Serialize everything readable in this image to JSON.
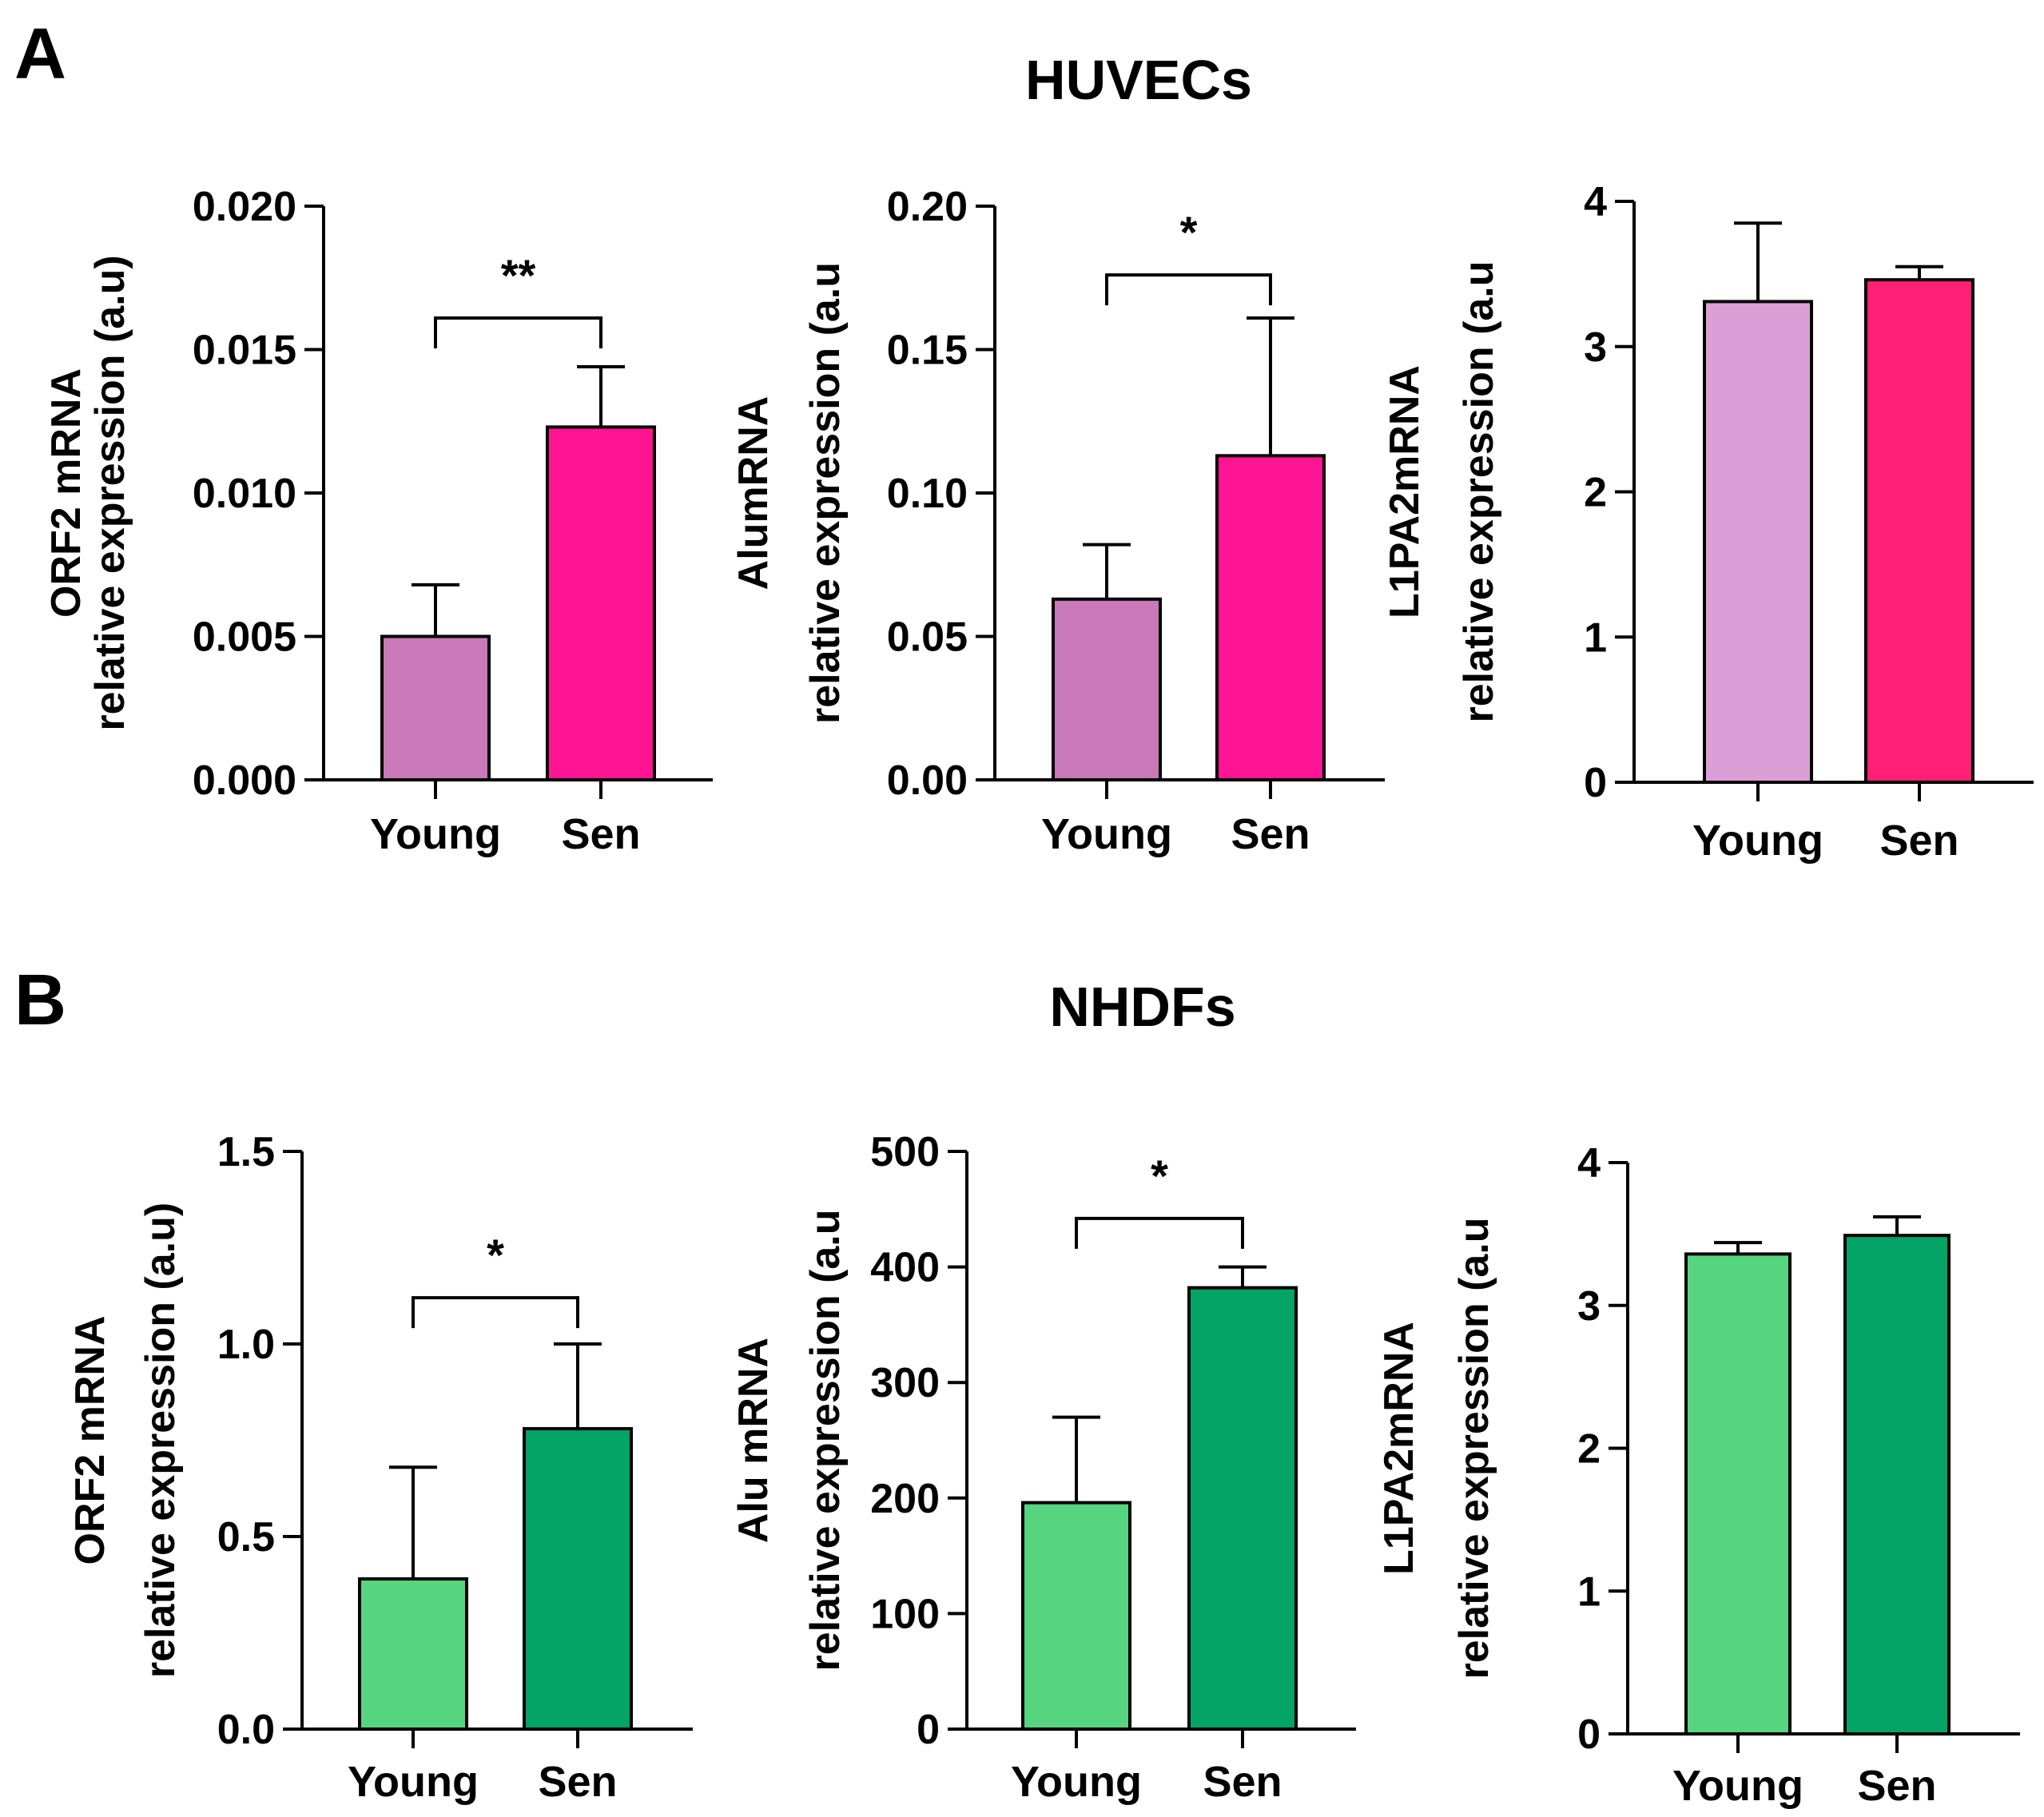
{
  "panels": [
    {
      "letter": "A",
      "title": "HUVECs"
    },
    {
      "letter": "B",
      "title": "NHDFs"
    }
  ],
  "colors": {
    "huvec_young": "#c978b8",
    "huvec_sen": "#ff1493",
    "huvec_young_light": "#dc9ed6",
    "huvec_sen_l1": "#ff1f76",
    "nhdf_young": "#56d47f",
    "nhdf_sen": "#03a465"
  },
  "chart_data": [
    {
      "type": "bar",
      "panel": "A",
      "categories": [
        "Young",
        "Sen"
      ],
      "values": [
        0.005,
        0.0123
      ],
      "errors": [
        0.0018,
        0.0021
      ],
      "ylabel": [
        "ORF2 mRNA",
        "relative expression (a.u)"
      ],
      "ylim": [
        0,
        0.02
      ],
      "ticks": [
        0,
        0.005,
        0.01,
        0.015,
        0.02
      ],
      "tick_labels": [
        "0.000",
        "0.005",
        "0.010",
        "0.015",
        "0.020"
      ],
      "significance": {
        "label": "**",
        "bracket_y": 0.0161
      },
      "colors": [
        "#c978b8",
        "#ff1493"
      ]
    },
    {
      "type": "bar",
      "panel": "A",
      "categories": [
        "Young",
        "Sen"
      ],
      "values": [
        0.063,
        0.113
      ],
      "errors": [
        0.019,
        0.048
      ],
      "ylabel": [
        "AlumRNA",
        "relative expression (a.u"
      ],
      "ylim": [
        0,
        0.2
      ],
      "ticks": [
        0,
        0.05,
        0.1,
        0.15,
        0.2
      ],
      "tick_labels": [
        "0.00",
        "0.05",
        "0.10",
        "0.15",
        "0.20"
      ],
      "significance": {
        "label": "*",
        "bracket_y": 0.176
      },
      "colors": [
        "#c978b8",
        "#ff1493"
      ]
    },
    {
      "type": "bar",
      "panel": "A",
      "categories": [
        "Young",
        "Sen"
      ],
      "values": [
        3.31,
        3.46
      ],
      "errors": [
        0.54,
        0.09
      ],
      "ylabel": [
        "L1PA2mRNA",
        "relative expression (a.u"
      ],
      "ylim": [
        0,
        4
      ],
      "ticks": [
        0,
        1,
        2,
        3,
        4
      ],
      "tick_labels": [
        "0",
        "1",
        "2",
        "3",
        "4"
      ],
      "significance": null,
      "colors": [
        "#dc9ed6",
        "#ff1f76"
      ]
    },
    {
      "type": "bar",
      "panel": "B",
      "categories": [
        "Young",
        "Sen"
      ],
      "values": [
        0.39,
        0.78
      ],
      "errors": [
        0.29,
        0.22
      ],
      "ylabel": [
        "ORF2 mRNA",
        "relative expression (a.u)"
      ],
      "ylim": [
        0,
        1.5
      ],
      "ticks": [
        0,
        0.5,
        1.0,
        1.5
      ],
      "tick_labels": [
        "0.0",
        "0.5",
        "1.0",
        "1.5"
      ],
      "significance": {
        "label": "*",
        "bracket_y": 1.12
      },
      "colors": [
        "#56d47f",
        "#03a465"
      ]
    },
    {
      "type": "bar",
      "panel": "B",
      "categories": [
        "Young",
        "Sen"
      ],
      "values": [
        196,
        382
      ],
      "errors": [
        74,
        18
      ],
      "ylabel": [
        "Alu mRNA",
        "relative expression (a.u"
      ],
      "ylim": [
        0,
        500
      ],
      "ticks": [
        0,
        100,
        200,
        300,
        400,
        500
      ],
      "tick_labels": [
        "0",
        "100",
        "200",
        "300",
        "400",
        "500"
      ],
      "significance": {
        "label": "*",
        "bracket_y": 442
      },
      "colors": [
        "#56d47f",
        "#03a465"
      ]
    },
    {
      "type": "bar",
      "panel": "B",
      "categories": [
        "Young",
        "Sen"
      ],
      "values": [
        3.36,
        3.49
      ],
      "errors": [
        0.08,
        0.13
      ],
      "ylabel": [
        "L1PA2mRNA",
        "relative expression (a.u"
      ],
      "ylim": [
        0,
        4
      ],
      "ticks": [
        0,
        1,
        2,
        3,
        4
      ],
      "tick_labels": [
        "0",
        "1",
        "2",
        "3",
        "4"
      ],
      "significance": null,
      "colors": [
        "#56d47f",
        "#03a465"
      ]
    }
  ]
}
